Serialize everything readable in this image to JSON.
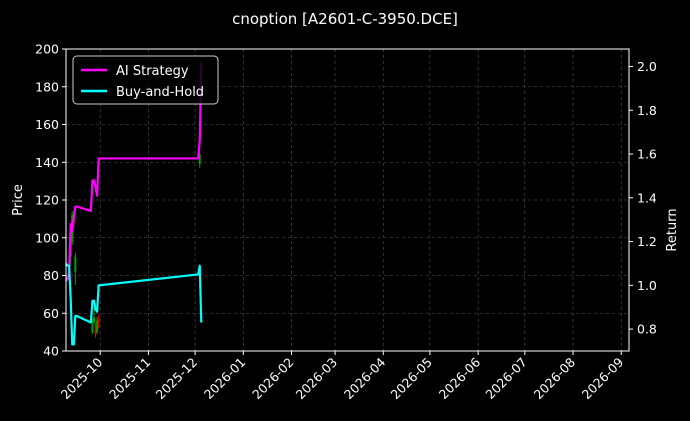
{
  "chart_data": {
    "type": "line",
    "title": "cnoption [A2601-C-3950.DCE]",
    "xlabel": "",
    "ylabel": "Price",
    "y2label": "Return",
    "xlim": [
      "2025-09-09",
      "2026-09-06"
    ],
    "ylim": [
      40,
      200
    ],
    "y2lim": [
      0.7,
      2.08
    ],
    "grid": true,
    "legend_position": "top-left",
    "x_tick_labels": [
      "2025-10",
      "2025-11",
      "2025-12",
      "2026-01",
      "2026-02",
      "2026-03",
      "2026-04",
      "2026-05",
      "2026-06",
      "2026-07",
      "2026-08",
      "2026-09"
    ],
    "y_tick_labels": [
      "40",
      "60",
      "80",
      "100",
      "120",
      "140",
      "160",
      "180",
      "200"
    ],
    "y2_tick_labels": [
      "0.8",
      "1.0",
      "1.2",
      "1.4",
      "1.6",
      "1.8",
      "2.0"
    ],
    "colors": {
      "background": "#000000",
      "ai_strategy": "#ff00ff",
      "buy_and_hold": "#00ffff",
      "candle_up": "#00a000",
      "candle_down": "#e00000",
      "grid": "#555555"
    },
    "series": [
      {
        "name": "AI Strategy",
        "axis": "right",
        "x": [
          "2025-09-09",
          "2025-09-10",
          "2025-09-11",
          "2025-09-12",
          "2025-09-13",
          "2025-09-14",
          "2025-09-15",
          "2025-09-16",
          "2025-09-25",
          "2025-09-26",
          "2025-09-27",
          "2025-09-28",
          "2025-09-29",
          "2025-09-30",
          "2025-12-03",
          "2025-12-04",
          "2025-12-05"
        ],
        "values": [
          1.02,
          1.03,
          1.06,
          1.28,
          1.25,
          1.31,
          1.36,
          1.36,
          1.34,
          1.48,
          1.48,
          1.45,
          1.41,
          1.58,
          1.58,
          1.66,
          2.02
        ]
      },
      {
        "name": "Buy-and-Hold",
        "axis": "right",
        "x": [
          "2025-09-09",
          "2025-09-10",
          "2025-09-11",
          "2025-09-12",
          "2025-09-13",
          "2025-09-14",
          "2025-09-15",
          "2025-09-16",
          "2025-09-25",
          "2025-09-26",
          "2025-09-27",
          "2025-09-28",
          "2025-09-29",
          "2025-09-30",
          "2025-12-03",
          "2025-12-04",
          "2025-12-05"
        ],
        "values": [
          1.1,
          1.09,
          1.09,
          0.94,
          0.73,
          0.73,
          0.86,
          0.86,
          0.83,
          0.93,
          0.93,
          0.89,
          0.88,
          1.0,
          1.05,
          1.09,
          0.83
        ]
      }
    ],
    "candles": [
      {
        "x": "2025-09-12",
        "open": 90,
        "close": 100,
        "high": 105,
        "low": 85
      },
      {
        "x": "2025-09-13",
        "open": 98,
        "close": 112,
        "high": 114,
        "low": 96
      },
      {
        "x": "2025-09-14",
        "open": 112,
        "close": 108,
        "high": 115,
        "low": 105
      },
      {
        "x": "2025-09-15",
        "open": 82,
        "close": 90,
        "high": 92,
        "low": 75
      },
      {
        "x": "2025-09-26",
        "open": 50,
        "close": 54,
        "high": 57,
        "low": 49
      },
      {
        "x": "2025-09-27",
        "open": 55,
        "close": 58,
        "high": 63,
        "low": 54
      },
      {
        "x": "2025-09-28",
        "open": 53,
        "close": 49,
        "high": 55,
        "low": 47
      },
      {
        "x": "2025-09-29",
        "open": 50,
        "close": 56,
        "high": 58,
        "low": 49
      },
      {
        "x": "2025-09-30",
        "open": 57,
        "close": 54,
        "high": 59,
        "low": 52
      },
      {
        "x": "2025-12-04",
        "open": 139,
        "close": 144,
        "high": 145,
        "low": 137
      }
    ]
  }
}
